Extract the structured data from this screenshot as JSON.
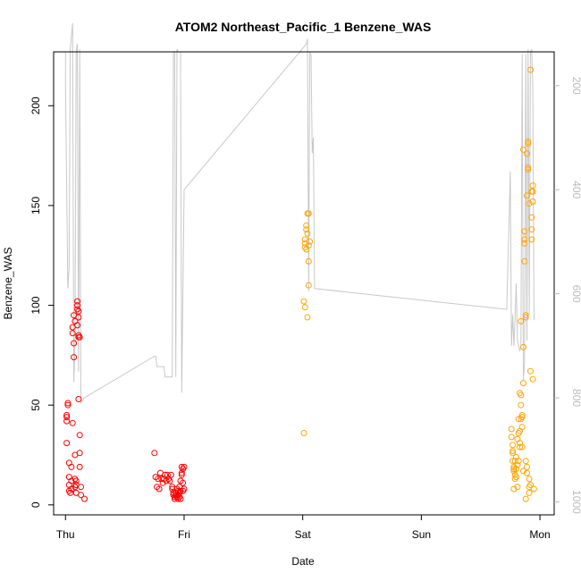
{
  "chart_data": {
    "type": "scatter",
    "title": "ATOM2 Northeast_Pacific_1 Benzene_WAS",
    "xlabel": "Date",
    "ylabel": "Benzene_WAS",
    "x_ticks": [
      "Thu",
      "Fri",
      "Sat",
      "Sun",
      "Mon"
    ],
    "xlim": [
      -0.1,
      4.12
    ],
    "ylim": [
      -5,
      227
    ],
    "y_ticks": [
      0,
      50,
      100,
      150,
      200
    ],
    "y2_ticks": [
      200,
      400,
      600,
      800,
      1000
    ],
    "y2lim": [
      1025,
      135
    ],
    "grid": false,
    "legend": "none",
    "colors": {
      "series_1": "#ff0000",
      "series_2": "#ffa500",
      "secondary_line": "#c8c8c8",
      "axis": "#000000",
      "axis_right": "#bbbbbb"
    },
    "series": [
      {
        "color": "#ff0000",
        "points": [
          [
            0.01,
            44
          ],
          [
            0.01,
            45
          ],
          [
            0.01,
            42
          ],
          [
            0.01,
            31
          ],
          [
            0.02,
            51
          ],
          [
            0.02,
            50
          ],
          [
            0.03,
            21
          ],
          [
            0.03,
            14
          ],
          [
            0.03,
            10
          ],
          [
            0.03,
            7
          ],
          [
            0.04,
            6
          ],
          [
            0.05,
            12
          ],
          [
            0.05,
            8
          ],
          [
            0.05,
            19
          ],
          [
            0.06,
            41
          ],
          [
            0.06,
            86
          ],
          [
            0.06,
            89
          ],
          [
            0.07,
            74
          ],
          [
            0.07,
            81
          ],
          [
            0.07,
            95
          ],
          [
            0.08,
            92
          ],
          [
            0.08,
            25
          ],
          [
            0.08,
            13
          ],
          [
            0.08,
            9
          ],
          [
            0.09,
            10
          ],
          [
            0.09,
            6
          ],
          [
            0.09,
            12
          ],
          [
            0.1,
            90
          ],
          [
            0.1,
            98
          ],
          [
            0.1,
            100
          ],
          [
            0.1,
            102
          ],
          [
            0.11,
            97
          ],
          [
            0.11,
            94
          ],
          [
            0.11,
            85
          ],
          [
            0.11,
            84
          ],
          [
            0.11,
            53
          ],
          [
            0.12,
            84
          ],
          [
            0.12,
            35
          ],
          [
            0.12,
            26
          ],
          [
            0.12,
            19
          ],
          [
            0.13,
            9
          ],
          [
            0.13,
            5
          ],
          [
            0.16,
            3
          ],
          [
            0.75,
            26
          ],
          [
            0.76,
            14
          ],
          [
            0.77,
            9
          ],
          [
            0.78,
            13
          ],
          [
            0.79,
            8
          ],
          [
            0.8,
            16
          ],
          [
            0.81,
            13
          ],
          [
            0.82,
            11
          ],
          [
            0.83,
            13
          ],
          [
            0.84,
            15
          ],
          [
            0.85,
            12
          ],
          [
            0.86,
            15
          ],
          [
            0.87,
            13
          ],
          [
            0.88,
            12
          ],
          [
            0.89,
            15
          ],
          [
            0.9,
            9
          ],
          [
            0.9,
            8
          ],
          [
            0.91,
            6
          ],
          [
            0.91,
            5
          ],
          [
            0.92,
            4
          ],
          [
            0.92,
            3
          ],
          [
            0.93,
            6
          ],
          [
            0.93,
            5
          ],
          [
            0.94,
            4
          ],
          [
            0.94,
            8
          ],
          [
            0.95,
            3
          ],
          [
            0.95,
            5
          ],
          [
            0.96,
            6
          ],
          [
            0.96,
            4
          ],
          [
            0.96,
            9
          ],
          [
            0.97,
            7
          ],
          [
            0.97,
            12
          ],
          [
            0.98,
            16
          ],
          [
            0.98,
            19
          ],
          [
            0.98,
            15
          ],
          [
            0.99,
            11
          ],
          [
            0.99,
            18
          ],
          [
            0.99,
            7
          ],
          [
            1.0,
            19
          ],
          [
            1.0,
            8
          ],
          [
            0.97,
            3
          ],
          [
            0.95,
            7
          ]
        ]
      },
      {
        "color": "#ffa500",
        "points": [
          [
            2.01,
            36
          ],
          [
            2.01,
            102
          ],
          [
            2.02,
            129
          ],
          [
            2.02,
            131
          ],
          [
            2.02,
            99
          ],
          [
            2.02,
            133
          ],
          [
            2.03,
            138
          ],
          [
            2.03,
            128
          ],
          [
            2.03,
            140
          ],
          [
            2.04,
            136
          ],
          [
            2.04,
            94
          ],
          [
            2.04,
            146
          ],
          [
            2.05,
            122
          ],
          [
            2.05,
            130
          ],
          [
            2.05,
            146
          ],
          [
            2.05,
            110
          ],
          [
            2.06,
            132
          ],
          [
            3.76,
            38
          ],
          [
            3.76,
            34
          ],
          [
            3.77,
            27
          ],
          [
            3.77,
            30
          ],
          [
            3.77,
            26
          ],
          [
            3.77,
            22
          ],
          [
            3.78,
            19
          ],
          [
            3.78,
            18
          ],
          [
            3.78,
            17
          ],
          [
            3.78,
            8
          ],
          [
            3.79,
            22
          ],
          [
            3.79,
            13
          ],
          [
            3.79,
            15
          ],
          [
            3.8,
            24
          ],
          [
            3.8,
            18
          ],
          [
            3.8,
            14
          ],
          [
            3.81,
            20
          ],
          [
            3.81,
            33
          ],
          [
            3.81,
            9
          ],
          [
            3.82,
            36
          ],
          [
            3.82,
            43
          ],
          [
            3.82,
            22
          ],
          [
            3.83,
            31
          ],
          [
            3.83,
            37
          ],
          [
            3.83,
            29
          ],
          [
            3.83,
            56
          ],
          [
            3.84,
            55
          ],
          [
            3.84,
            50
          ],
          [
            3.84,
            43
          ],
          [
            3.84,
            92
          ],
          [
            3.85,
            45
          ],
          [
            3.85,
            44
          ],
          [
            3.85,
            39
          ],
          [
            3.85,
            29
          ],
          [
            3.86,
            17
          ],
          [
            3.86,
            61
          ],
          [
            3.86,
            79
          ],
          [
            3.86,
            178
          ],
          [
            3.87,
            137
          ],
          [
            3.87,
            133
          ],
          [
            3.87,
            131
          ],
          [
            3.87,
            122
          ],
          [
            3.88,
            95
          ],
          [
            3.88,
            94
          ],
          [
            3.88,
            22
          ],
          [
            3.88,
            3
          ],
          [
            3.89,
            19
          ],
          [
            3.89,
            16
          ],
          [
            3.89,
            176
          ],
          [
            3.89,
            155
          ],
          [
            3.9,
            182
          ],
          [
            3.9,
            181
          ],
          [
            3.9,
            168
          ],
          [
            3.9,
            169
          ],
          [
            3.91,
            151
          ],
          [
            3.91,
            6
          ],
          [
            3.91,
            13
          ],
          [
            3.91,
            9
          ],
          [
            3.92,
            10
          ],
          [
            3.92,
            67
          ],
          [
            3.92,
            218
          ],
          [
            3.93,
            157
          ],
          [
            3.93,
            138
          ],
          [
            3.93,
            133
          ],
          [
            3.93,
            144
          ],
          [
            3.94,
            160
          ],
          [
            3.94,
            157
          ],
          [
            3.94,
            152
          ],
          [
            3.94,
            63
          ],
          [
            3.95,
            8
          ]
        ]
      }
    ],
    "secondary_line": {
      "axis": "right",
      "points": [
        [
          0.0,
          135
        ],
        [
          0.0,
          200
        ],
        [
          0.02,
          590
        ],
        [
          0.03,
          550
        ],
        [
          0.04,
          130
        ],
        [
          0.06,
          80
        ],
        [
          0.07,
          770
        ],
        [
          0.08,
          700
        ],
        [
          0.09,
          135
        ],
        [
          0.1,
          120
        ],
        [
          0.11,
          750
        ],
        [
          0.12,
          130
        ],
        [
          0.12,
          140
        ],
        [
          0.13,
          810
        ],
        [
          0.16,
          800
        ],
        [
          0.75,
          720
        ],
        [
          0.76,
          720
        ],
        [
          0.77,
          740
        ],
        [
          0.83,
          740
        ],
        [
          0.84,
          760
        ],
        [
          0.9,
          760
        ],
        [
          0.91,
          135
        ],
        [
          0.92,
          135
        ],
        [
          0.93,
          760
        ],
        [
          0.94,
          130
        ],
        [
          0.95,
          135
        ],
        [
          0.97,
          135
        ],
        [
          0.98,
          790
        ],
        [
          1.0,
          400
        ],
        [
          2.03,
          120
        ],
        [
          2.04,
          110
        ],
        [
          2.05,
          595
        ],
        [
          2.06,
          135
        ],
        [
          2.07,
          140
        ],
        [
          2.08,
          330
        ],
        [
          2.09,
          300
        ],
        [
          2.1,
          590
        ],
        [
          3.72,
          630
        ],
        [
          3.75,
          365
        ],
        [
          3.76,
          700
        ],
        [
          3.77,
          640
        ],
        [
          3.78,
          700
        ],
        [
          3.79,
          650
        ],
        [
          3.8,
          580
        ],
        [
          3.81,
          690
        ],
        [
          3.82,
          700
        ],
        [
          3.83,
          710
        ],
        [
          3.84,
          700
        ],
        [
          3.85,
          140
        ],
        [
          3.86,
          765
        ],
        [
          3.87,
          735
        ],
        [
          3.88,
          140
        ],
        [
          3.89,
          690
        ],
        [
          3.9,
          130
        ],
        [
          3.91,
          640
        ],
        [
          3.92,
          135
        ],
        [
          3.93,
          130
        ],
        [
          3.94,
          200
        ],
        [
          3.95,
          650
        ]
      ]
    }
  }
}
